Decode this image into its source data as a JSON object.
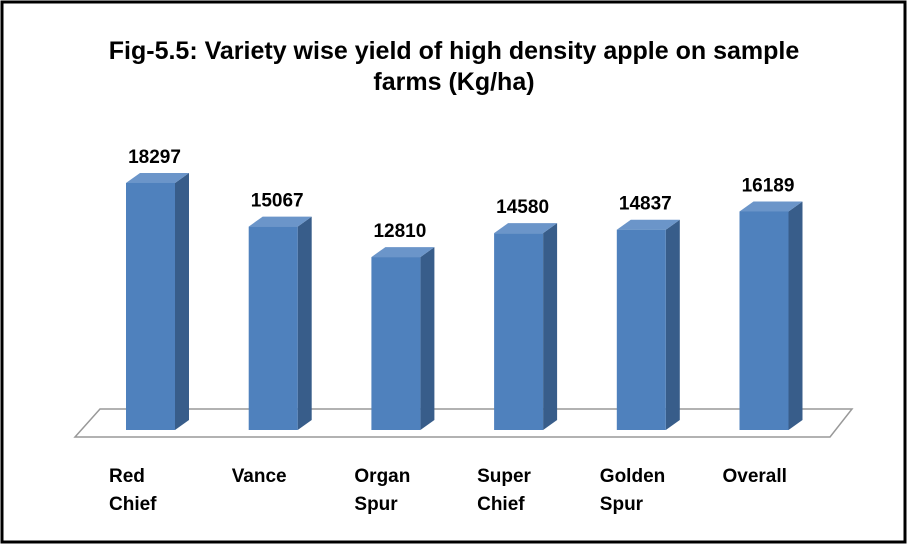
{
  "chart_data": {
    "type": "bar",
    "title": "Fig-5.5: Variety wise yield of high density apple on sample farms (Kg/ha)",
    "categories": [
      "Red Chief",
      "Vance",
      "Organ Spur",
      "Super Chief",
      "Golden Spur",
      "Overall"
    ],
    "values": [
      18297,
      15067,
      12810,
      14580,
      14837,
      16189
    ],
    "color": "#4f81bd"
  }
}
